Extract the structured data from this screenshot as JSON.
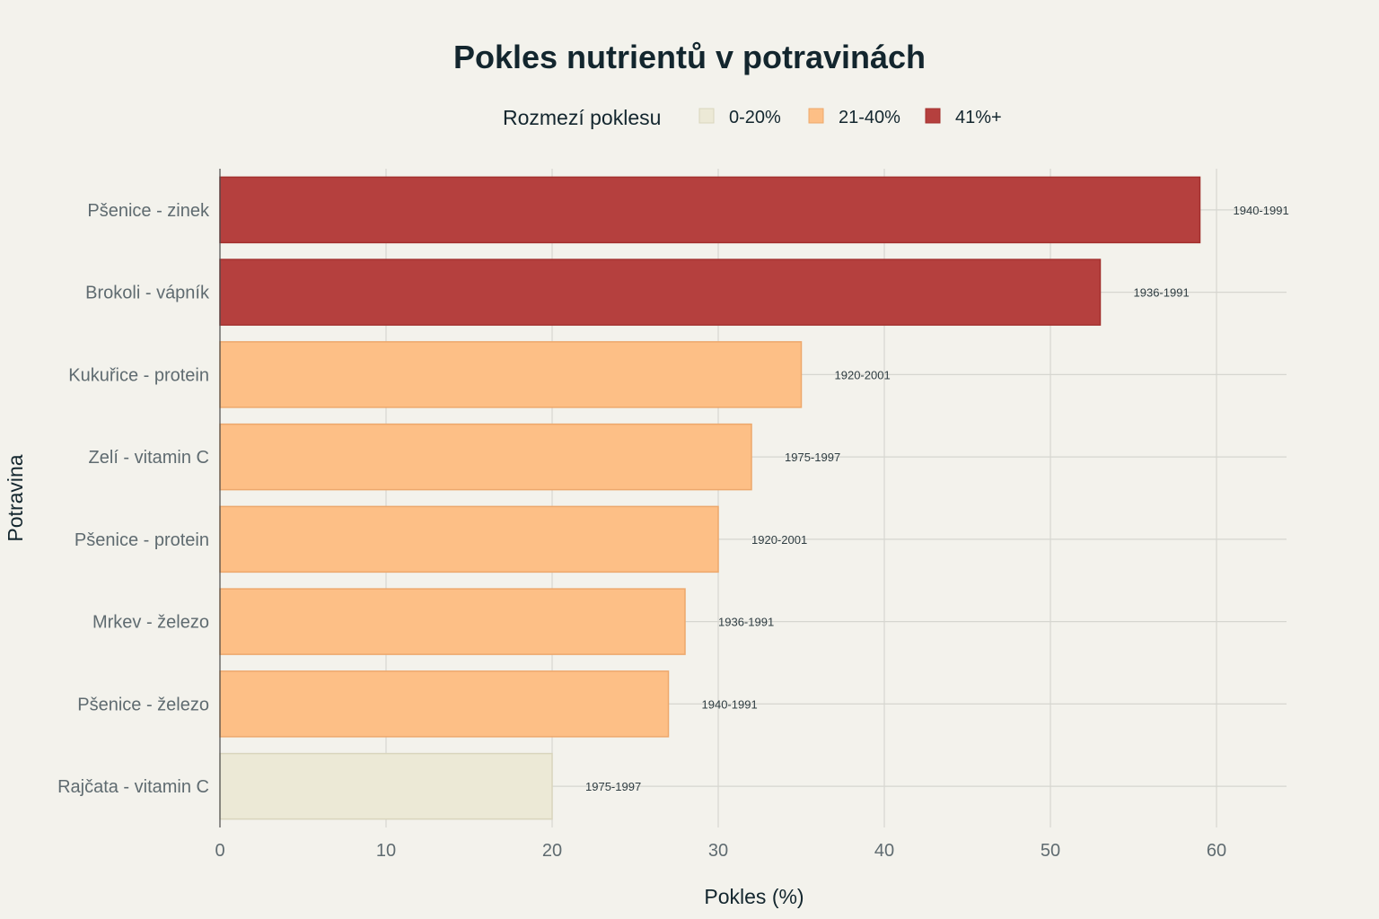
{
  "chart_data": {
    "type": "bar",
    "orientation": "horizontal",
    "title": "Pokles nutrientů v potravinách",
    "xlabel": "Pokles (%)",
    "ylabel": "Potravina",
    "xlim": [
      0,
      64
    ],
    "xticks": [
      0,
      10,
      20,
      30,
      40,
      50,
      60
    ],
    "grid": true,
    "legend": {
      "title": "Rozmezí poklesu",
      "placement": "top-center",
      "items": [
        {
          "label": "0-20%",
          "color": "#ece9d6"
        },
        {
          "label": "21-40%",
          "color": "#fdbf86"
        },
        {
          "label": "41%+",
          "color": "#b5403e"
        }
      ]
    },
    "categories": [
      "Pšenice - zinek",
      "Brokoli - vápník",
      "Kukuřice - protein",
      "Zelí - vitamin C",
      "Pšenice - protein",
      "Mrkev - železo",
      "Pšenice - železo",
      "Rajčata - vitamin C"
    ],
    "values": [
      59,
      53,
      35,
      32,
      30,
      28,
      27,
      20
    ],
    "ranges": [
      "41%+",
      "41%+",
      "21-40%",
      "21-40%",
      "21-40%",
      "21-40%",
      "21-40%",
      "0-20%"
    ],
    "annotations": [
      "1940-1991",
      "1936-1991",
      "1920-2001",
      "1975-1997",
      "1920-2001",
      "1936-1991",
      "1940-1991",
      "1975-1997"
    ]
  }
}
